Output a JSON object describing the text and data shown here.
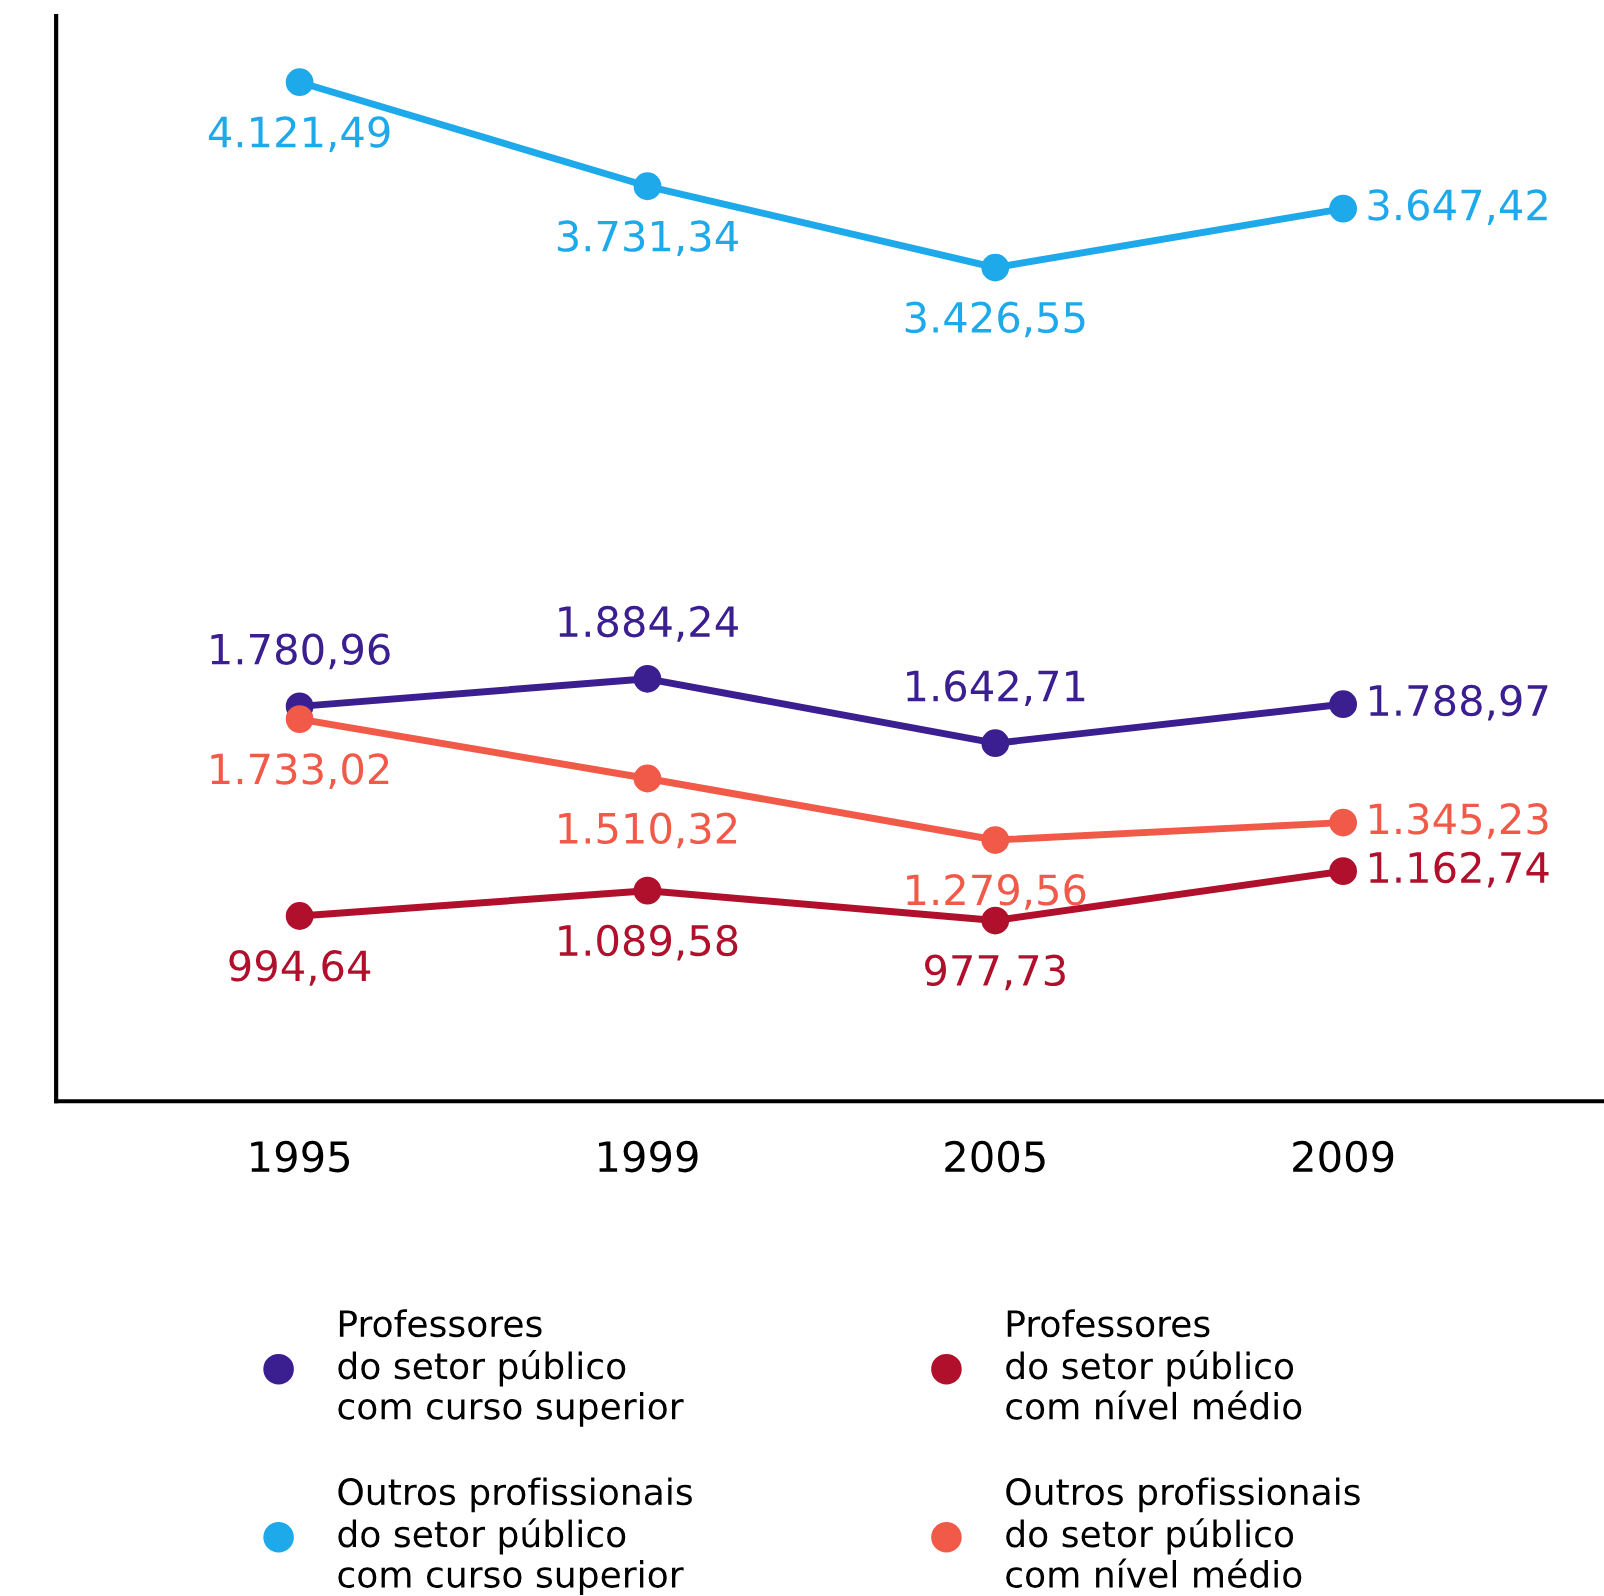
{
  "chart_data": {
    "type": "line",
    "categories": [
      "1995",
      "1999",
      "2005",
      "2009"
    ],
    "series": [
      {
        "name": "Professores\ndo setor público\ncom curso superior",
        "color": "#3b1e8f",
        "values": [
          1780.96,
          1884.24,
          1642.71,
          1788.97
        ],
        "value_labels": [
          "1.780,96",
          "1.884,24",
          "1.642,71",
          "1.788,97"
        ]
      },
      {
        "name": "Outros profissionais\ndo setor público\ncom curso superior",
        "color": "#1ea9ea",
        "values": [
          4121.49,
          3731.34,
          3426.55,
          3647.42
        ],
        "value_labels": [
          "4.121,49",
          "3.731,34",
          "3.426,55",
          "3.647,42"
        ]
      },
      {
        "name": "Professores\ndo setor público\ncom nível médio",
        "color": "#b0102c",
        "values": [
          994.64,
          1089.58,
          977.73,
          1162.74
        ],
        "value_labels": [
          "994,64",
          "1.089,58",
          "977,73",
          "1.162,74"
        ]
      },
      {
        "name": "Outros profissionais\ndo setor público\ncom nível médio",
        "color": "#f15a48",
        "values": [
          1733.02,
          1510.32,
          1279.56,
          1345.23
        ],
        "value_labels": [
          "1.733,02",
          "1.510,32",
          "1.279,56",
          "1.345,23"
        ]
      }
    ],
    "ylim": [
      300,
      4370
    ],
    "tick_labels": "x",
    "marker": "circle",
    "line_style": "solid",
    "grid": false,
    "legend": "bottom"
  }
}
